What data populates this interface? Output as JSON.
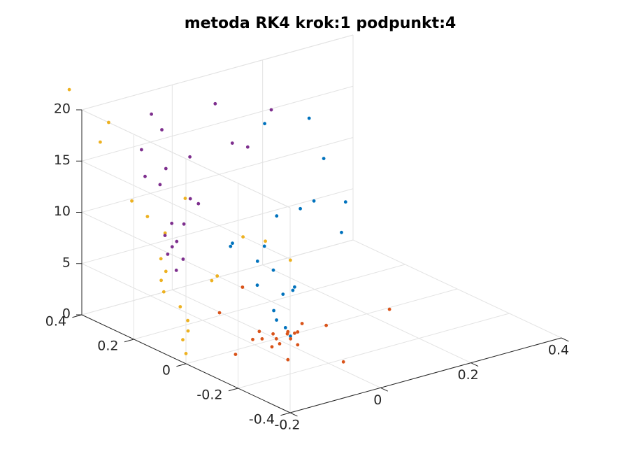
{
  "chart_data": {
    "type": "scatter",
    "projection": "3d",
    "title": "metoda RK4 krok:1 podpunkt:4",
    "xlabel": "",
    "ylabel": "",
    "zlabel": "",
    "xlim": [
      -0.2,
      0.4
    ],
    "ylim": [
      -0.4,
      0.4
    ],
    "zlim": [
      0,
      20
    ],
    "grid": true,
    "box": true,
    "xticks": [
      -0.2,
      0,
      0.2,
      0.4
    ],
    "xtick_labels": [
      "-0.2",
      "0",
      "0.2",
      "0.4"
    ],
    "yticks": [
      -0.4,
      -0.2,
      0,
      0.2,
      0.4
    ],
    "ytick_labels": [
      "-0.4",
      "-0.2",
      "0",
      "0.2",
      "0.4"
    ],
    "zticks": [
      0,
      5,
      10,
      15,
      20
    ],
    "ztick_labels": [
      "0",
      "5",
      "10",
      "15",
      "20"
    ],
    "series": [
      {
        "color": "#0072BD",
        "points": [
          [
            0.003,
            -0.049,
            0.8
          ],
          [
            -0.003,
            -0.04,
            1.6
          ],
          [
            -0.014,
            -0.025,
            2.3
          ],
          [
            -0.008,
            -0.004,
            2.9
          ],
          [
            0.029,
            0.025,
            3.7
          ],
          [
            0.033,
            -0.006,
            4.4
          ],
          [
            0.027,
            -0.023,
            5.0
          ],
          [
            -0.044,
            -0.003,
            5.8
          ],
          [
            0.014,
            0.036,
            6.1
          ],
          [
            -0.009,
            0.057,
            7.0
          ],
          [
            0.015,
            0.072,
            8.0
          ],
          [
            -0.042,
            0.103,
            8.3
          ],
          [
            -0.024,
            0.127,
            8.1
          ],
          [
            0.067,
            0.115,
            9.8
          ],
          [
            0.091,
            0.066,
            10.8
          ],
          [
            0.063,
            -0.035,
            13.1
          ],
          [
            0.011,
            -0.231,
            13.0
          ],
          [
            0.016,
            -0.238,
            16.0
          ],
          [
            0.163,
            0.101,
            14.4
          ],
          [
            0.183,
            0.192,
            17.0
          ],
          [
            0.087,
            0.196,
            17.6
          ]
        ]
      },
      {
        "color": "#D95319",
        "points": [
          [
            0.0,
            0.0,
            0.0
          ],
          [
            0.02,
            -0.02,
            0.0
          ],
          [
            -0.02,
            0.02,
            0.0
          ],
          [
            0.03,
            0.01,
            0.0
          ],
          [
            -0.01,
            -0.03,
            0.0
          ],
          [
            0.01,
            0.03,
            0.0
          ],
          [
            0.042,
            0.003,
            0.0
          ],
          [
            -0.03,
            -0.035,
            0.0
          ],
          [
            0.037,
            0.02,
            0.0
          ],
          [
            -0.035,
            0.03,
            0.0
          ],
          [
            0.05,
            0.005,
            0.0
          ],
          [
            0.081,
            0.042,
            0.0
          ],
          [
            -0.103,
            -0.022,
            0.0
          ],
          [
            0.012,
            -0.061,
            0.0
          ],
          [
            -0.046,
            -0.124,
            0.0
          ],
          [
            -0.002,
            0.062,
            0.0
          ],
          [
            0.109,
            -0.002,
            0.0
          ],
          [
            -0.002,
            0.215,
            0.0
          ],
          [
            0.025,
            -0.214,
            0.0
          ],
          [
            0.245,
            -0.009,
            0.0
          ],
          [
            0.106,
            0.314,
            0.0
          ]
        ]
      },
      {
        "color": "#EDB120",
        "points": [
          [
            -0.2,
            0.0,
            1.0
          ],
          [
            -0.2,
            0.012,
            2.2
          ],
          [
            -0.2,
            -0.008,
            3.3
          ],
          [
            -0.2,
            -0.007,
            4.3
          ],
          [
            -0.2,
            0.022,
            5.3
          ],
          [
            -0.2,
            0.085,
            6.0
          ],
          [
            -0.2,
            0.095,
            7.0
          ],
          [
            -0.2,
            0.077,
            8.1
          ],
          [
            -0.2,
            0.096,
            9.1
          ],
          [
            -0.2,
            -0.099,
            9.3
          ],
          [
            -0.2,
            -0.12,
            10.0
          ],
          [
            -0.2,
            0.08,
            11.8
          ],
          [
            -0.2,
            0.148,
            12.6
          ],
          [
            -0.2,
            0.003,
            16.1
          ],
          [
            -0.2,
            -0.219,
            15.0
          ],
          [
            -0.2,
            0.208,
            13.4
          ],
          [
            -0.2,
            0.297,
            20.0
          ],
          [
            -0.2,
            -0.305,
            15.6
          ],
          [
            -0.2,
            -0.401,
            14.9
          ],
          [
            -0.2,
            0.329,
            17.7
          ],
          [
            -0.2,
            0.448,
            21.4
          ]
        ]
      },
      {
        "color": "#7E2F8E",
        "points": [
          [
            0.009,
            0.4,
            1.8
          ],
          [
            0.024,
            0.4,
            2.7
          ],
          [
            -0.01,
            0.4,
            3.6
          ],
          [
            0.0,
            0.4,
            4.2
          ],
          [
            0.01,
            0.4,
            4.6
          ],
          [
            -0.016,
            0.4,
            5.5
          ],
          [
            0.026,
            0.4,
            6.1
          ],
          [
            -0.001,
            0.4,
            6.5
          ],
          [
            0.058,
            0.4,
            7.7
          ],
          [
            0.04,
            0.4,
            8.4
          ],
          [
            -0.027,
            0.4,
            10.6
          ],
          [
            0.039,
            0.4,
            12.5
          ],
          [
            -0.014,
            0.4,
            12.0
          ],
          [
            -0.06,
            0.4,
            11.8
          ],
          [
            -0.068,
            0.4,
            14.5
          ],
          [
            0.167,
            0.4,
            11.9
          ],
          [
            0.133,
            0.4,
            12.7
          ],
          [
            0.095,
            0.4,
            17.0
          ],
          [
            -0.023,
            0.4,
            15.9
          ],
          [
            -0.046,
            0.4,
            17.7
          ],
          [
            0.219,
            0.4,
            14.9
          ]
        ]
      }
    ]
  }
}
